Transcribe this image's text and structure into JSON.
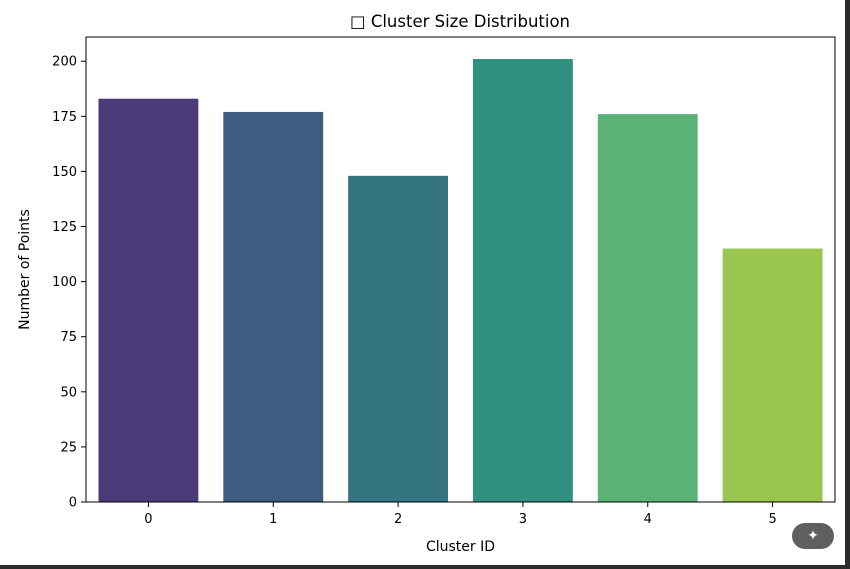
{
  "chart_data": {
    "type": "bar",
    "title": "□ Cluster Size Distribution",
    "xlabel": "Cluster ID",
    "ylabel": "Number of Points",
    "categories": [
      "0",
      "1",
      "2",
      "3",
      "4",
      "5"
    ],
    "values": [
      183,
      177,
      148,
      201,
      176,
      115
    ],
    "colors": [
      "#482878",
      "#3e4a89",
      "#31688e",
      "#26838f",
      "#1f9d8a",
      "#6ccd5a"
    ],
    "bar_colors_actual": [
      "#4a3a78",
      "#3e5c82",
      "#357582",
      "#319180",
      "#5ab277",
      "#9ac54e"
    ],
    "yticks": [
      0,
      25,
      50,
      75,
      100,
      125,
      150,
      175,
      200
    ],
    "ylim": [
      0,
      211
    ],
    "grid": false,
    "legend": "none"
  },
  "toolbar": {
    "magic_icon": "magic-wand-icon"
  }
}
